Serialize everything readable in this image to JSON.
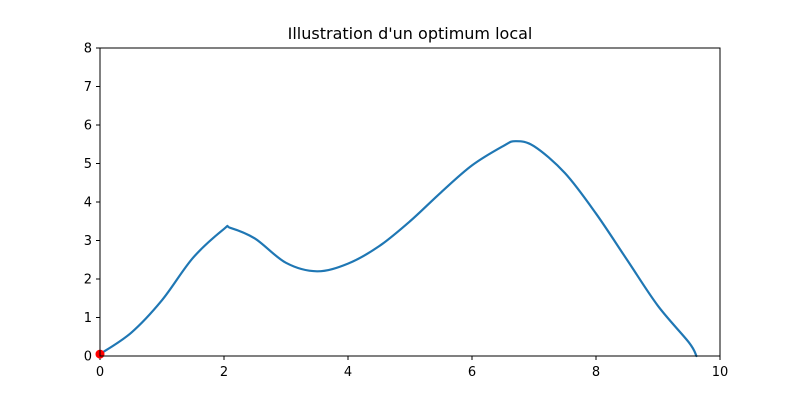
{
  "chart_data": {
    "type": "line",
    "title": "Illustration d'un optimum local",
    "xlabel": "",
    "ylabel": "",
    "xlim": [
      0,
      10
    ],
    "ylim": [
      0,
      8
    ],
    "x_ticks": [
      0,
      2,
      4,
      6,
      8,
      10
    ],
    "y_ticks": [
      0,
      1,
      2,
      3,
      4,
      5,
      6,
      7,
      8
    ],
    "grid": false,
    "legend": "none",
    "series": [
      {
        "color": "#1f77b4",
        "x": [
          0,
          0.5,
          1.0,
          1.5,
          2.0,
          2.1,
          2.5,
          3.0,
          3.5,
          4.0,
          4.5,
          5.0,
          5.5,
          6.0,
          6.5,
          6.7,
          7.0,
          7.5,
          8.0,
          8.5,
          9.0,
          9.5,
          9.62
        ],
        "y": [
          0.05,
          0.6,
          1.45,
          2.55,
          3.3,
          3.33,
          3.05,
          2.42,
          2.2,
          2.4,
          2.85,
          3.5,
          4.25,
          4.95,
          5.45,
          5.58,
          5.45,
          4.75,
          3.7,
          2.5,
          1.3,
          0.35,
          0.0
        ]
      }
    ],
    "markers": [
      {
        "x": 0,
        "y": 0.05,
        "color": "#ff0000"
      }
    ]
  }
}
